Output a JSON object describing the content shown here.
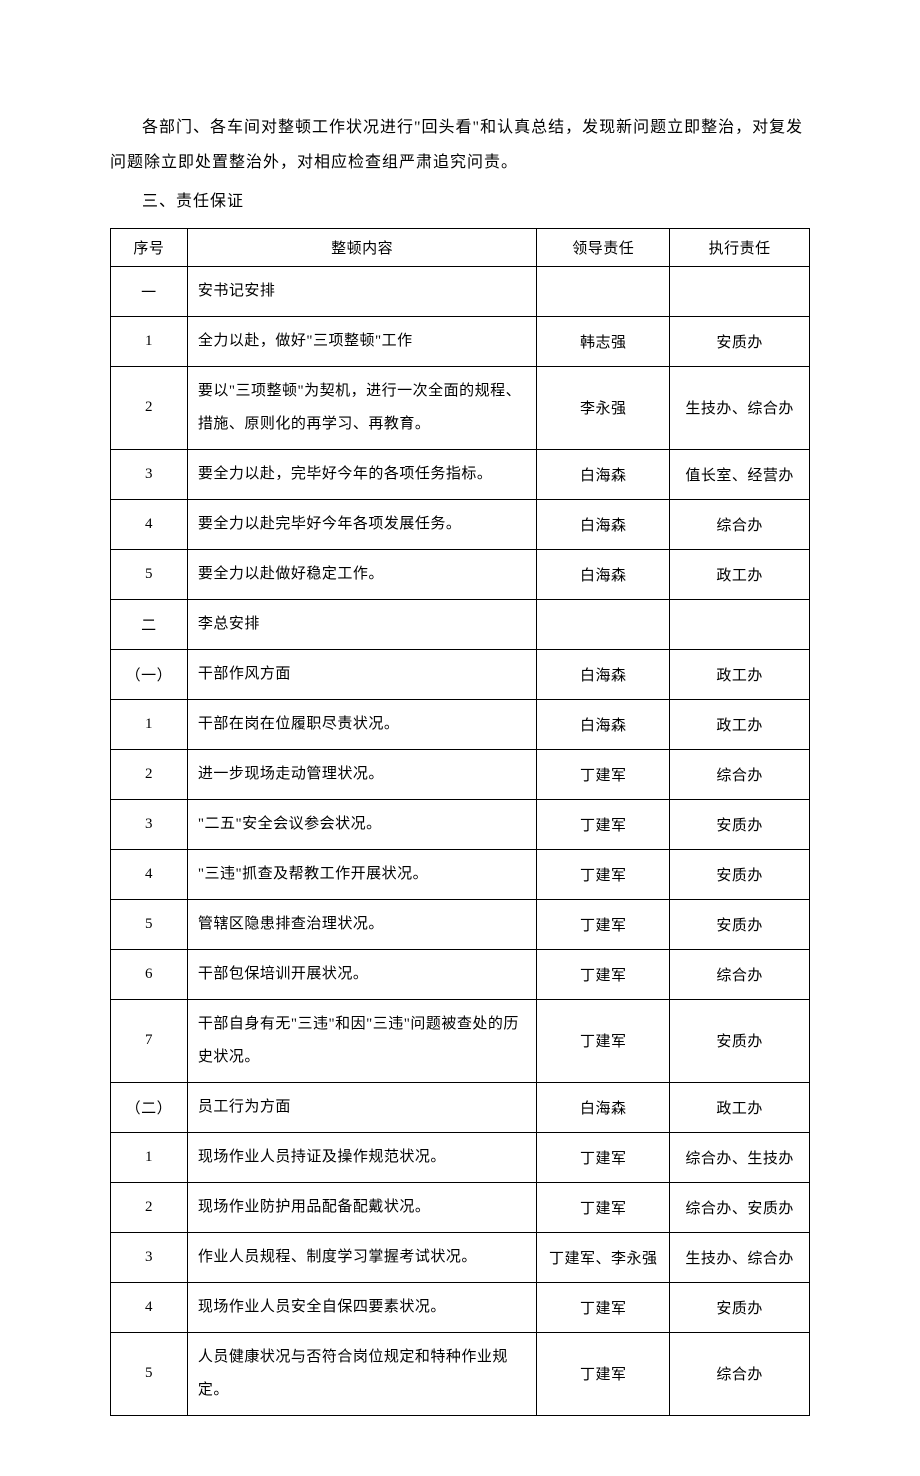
{
  "paragraph": "各部门、各车间对整顿工作状况进行\"回头看\"和认真总结，发现新问题立即整治，对复发问题除立即处置整治外，对相应检查组严肃追究问责。",
  "section_title": "三、责任保证",
  "table": {
    "headers": [
      "序号",
      "整顿内容",
      "领导责任",
      "执行责任"
    ],
    "rows": [
      {
        "seq": "一",
        "content": "安书记安排",
        "leader": "",
        "dept": ""
      },
      {
        "seq": "1",
        "content": "全力以赴，做好\"三项整顿\"工作",
        "leader": "韩志强",
        "dept": "安质办"
      },
      {
        "seq": "2",
        "content": "要以\"三项整顿\"为契机，进行一次全面的规程、措施、原则化的再学习、再教育。",
        "leader": "李永强",
        "dept": "生技办、综合办"
      },
      {
        "seq": "3",
        "content": "要全力以赴，完毕好今年的各项任务指标。",
        "leader": "白海森",
        "dept": "值长室、经营办"
      },
      {
        "seq": "4",
        "content": "要全力以赴完毕好今年各项发展任务。",
        "leader": "白海森",
        "dept": "综合办"
      },
      {
        "seq": "5",
        "content": "要全力以赴做好稳定工作。",
        "leader": "白海森",
        "dept": "政工办"
      },
      {
        "seq": "二",
        "content": "李总安排",
        "leader": "",
        "dept": ""
      },
      {
        "seq": "（一）",
        "content": "干部作风方面",
        "leader": "白海森",
        "dept": "政工办"
      },
      {
        "seq": "1",
        "content": "干部在岗在位履职尽责状况。",
        "leader": "白海森",
        "dept": "政工办"
      },
      {
        "seq": "2",
        "content": "进一步现场走动管理状况。",
        "leader": "丁建军",
        "dept": "综合办"
      },
      {
        "seq": "3",
        "content": "\"二五\"安全会议参会状况。",
        "leader": "丁建军",
        "dept": "安质办"
      },
      {
        "seq": "4",
        "content": "\"三违\"抓查及帮教工作开展状况。",
        "leader": "丁建军",
        "dept": "安质办"
      },
      {
        "seq": "5",
        "content": "管辖区隐患排查治理状况。",
        "leader": "丁建军",
        "dept": "安质办"
      },
      {
        "seq": "6",
        "content": "干部包保培训开展状况。",
        "leader": "丁建军",
        "dept": "综合办"
      },
      {
        "seq": "7",
        "content": "干部自身有无\"三违\"和因\"三违\"问题被查处的历史状况。",
        "leader": "丁建军",
        "dept": "安质办"
      },
      {
        "seq": "（二）",
        "content": "员工行为方面",
        "leader": "白海森",
        "dept": "政工办"
      },
      {
        "seq": "1",
        "content": "现场作业人员持证及操作规范状况。",
        "leader": "丁建军",
        "dept": "综合办、生技办"
      },
      {
        "seq": "2",
        "content": "现场作业防护用品配备配戴状况。",
        "leader": "丁建军",
        "dept": "综合办、安质办"
      },
      {
        "seq": "3",
        "content": "作业人员规程、制度学习掌握考试状况。",
        "leader": "丁建军、李永强",
        "dept": "生技办、综合办"
      },
      {
        "seq": "4",
        "content": "现场作业人员安全自保四要素状况。",
        "leader": "丁建军",
        "dept": "安质办"
      },
      {
        "seq": "5",
        "content": "人员健康状况与否符合岗位规定和特种作业规定。",
        "leader": "丁建军",
        "dept": "综合办"
      }
    ]
  }
}
